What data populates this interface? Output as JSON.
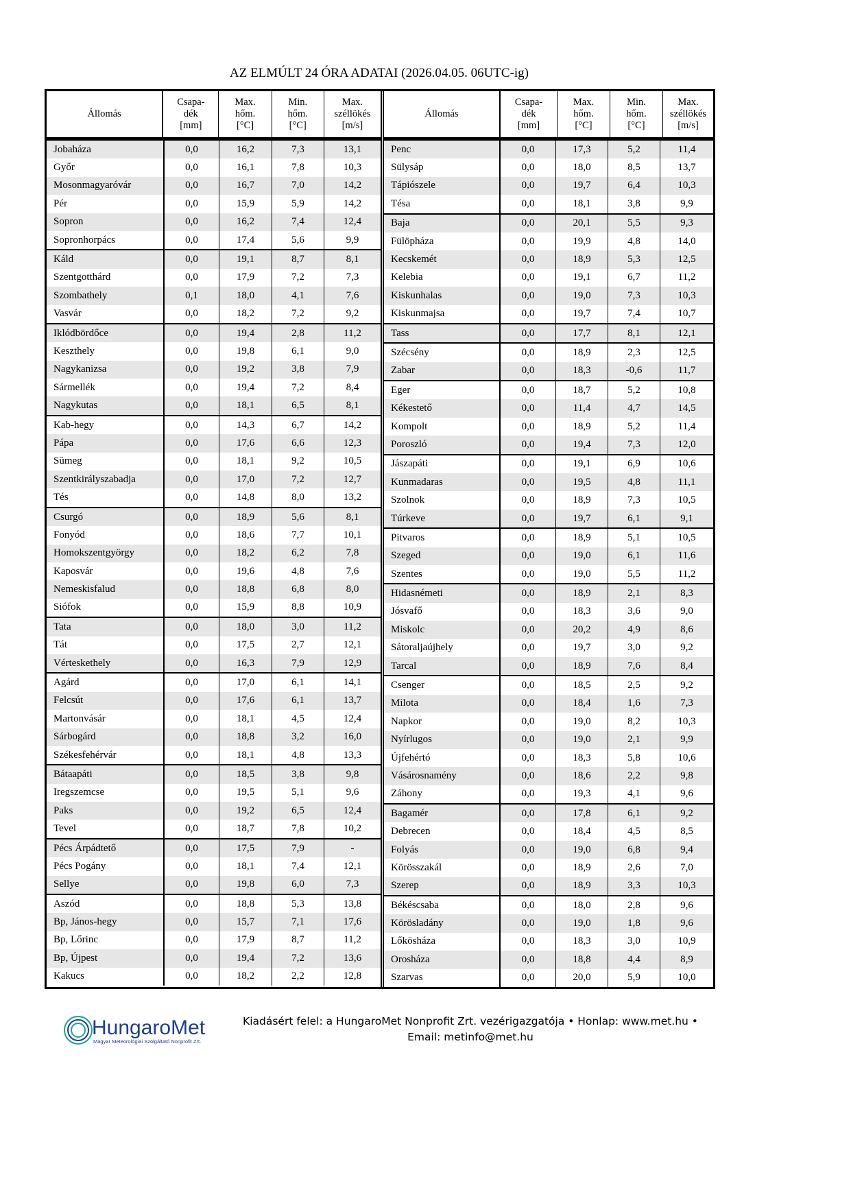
{
  "title": "AZ ELMÚLT 24 ÓRA ADATAI (2026.04.05. 06UTC-ig)",
  "columns": [
    "Állomás",
    "Csapa-\ndék\n[mm]",
    "Max.\nhőm.\n[°C]",
    "Min.\nhőm.\n[°C]",
    "Max.\nszéllökés\n[m/s]"
  ],
  "left_groups": [
    [
      [
        "Jobaháza",
        "0,0",
        "16,2",
        "7,3",
        "13,1"
      ],
      [
        "Győr",
        "0,0",
        "16,1",
        "7,8",
        "10,3"
      ],
      [
        "Mosonmagyaróvár",
        "0,0",
        "16,7",
        "7,0",
        "14,2"
      ],
      [
        "Pér",
        "0,0",
        "15,9",
        "5,9",
        "14,2"
      ],
      [
        "Sopron",
        "0,0",
        "16,2",
        "7,4",
        "12,4"
      ],
      [
        "Sopronhorpács",
        "0,0",
        "17,4",
        "5,6",
        "9,9"
      ]
    ],
    [
      [
        "Káld",
        "0,0",
        "19,1",
        "8,7",
        "8,1"
      ],
      [
        "Szentgotthárd",
        "0,0",
        "17,9",
        "7,2",
        "7,3"
      ],
      [
        "Szombathely",
        "0,1",
        "18,0",
        "4,1",
        "7,6"
      ],
      [
        "Vasvár",
        "0,0",
        "18,2",
        "7,2",
        "9,2"
      ]
    ],
    [
      [
        "Iklódbördőce",
        "0,0",
        "19,4",
        "2,8",
        "11,2"
      ],
      [
        "Keszthely",
        "0,0",
        "19,8",
        "6,1",
        "9,0"
      ],
      [
        "Nagykanizsa",
        "0,0",
        "19,2",
        "3,8",
        "7,9"
      ],
      [
        "Sármellék",
        "0,0",
        "19,4",
        "7,2",
        "8,4"
      ],
      [
        "Nagykutas",
        "0,0",
        "18,1",
        "6,5",
        "8,1"
      ]
    ],
    [
      [
        "Kab-hegy",
        "0,0",
        "14,3",
        "6,7",
        "14,2"
      ],
      [
        "Pápa",
        "0,0",
        "17,6",
        "6,6",
        "12,3"
      ],
      [
        "Sümeg",
        "0,0",
        "18,1",
        "9,2",
        "10,5"
      ],
      [
        "Szentkirályszabadja",
        "0,0",
        "17,0",
        "7,2",
        "12,7"
      ],
      [
        "Tés",
        "0,0",
        "14,8",
        "8,0",
        "13,2"
      ]
    ],
    [
      [
        "Csurgó",
        "0,0",
        "18,9",
        "5,6",
        "8,1"
      ],
      [
        "Fonyód",
        "0,0",
        "18,6",
        "7,7",
        "10,1"
      ],
      [
        "Homokszentgyörgy",
        "0,0",
        "18,2",
        "6,2",
        "7,8"
      ],
      [
        "Kaposvár",
        "0,0",
        "19,6",
        "4,8",
        "7,6"
      ],
      [
        "Nemeskisfalud",
        "0,0",
        "18,8",
        "6,8",
        "8,0"
      ],
      [
        "Siófok",
        "0,0",
        "15,9",
        "8,8",
        "10,9"
      ]
    ],
    [
      [
        "Tata",
        "0,0",
        "18,0",
        "3,0",
        "11,2"
      ],
      [
        "Tát",
        "0,0",
        "17,5",
        "2,7",
        "12,1"
      ],
      [
        "Vérteskethely",
        "0,0",
        "16,3",
        "7,9",
        "12,9"
      ]
    ],
    [
      [
        "Agárd",
        "0,0",
        "17,0",
        "6,1",
        "14,1"
      ],
      [
        "Felcsút",
        "0,0",
        "17,6",
        "6,1",
        "13,7"
      ],
      [
        "Martonvásár",
        "0,0",
        "18,1",
        "4,5",
        "12,4"
      ],
      [
        "Sárbogárd",
        "0,0",
        "18,8",
        "3,2",
        "16,0"
      ],
      [
        "Székesfehérvár",
        "0,0",
        "18,1",
        "4,8",
        "13,3"
      ]
    ],
    [
      [
        "Bátaapáti",
        "0,0",
        "18,5",
        "3,8",
        "9,8"
      ],
      [
        "Iregszemcse",
        "0,0",
        "19,5",
        "5,1",
        "9,6"
      ],
      [
        "Paks",
        "0,0",
        "19,2",
        "6,5",
        "12,4"
      ],
      [
        "Tevel",
        "0,0",
        "18,7",
        "7,8",
        "10,2"
      ]
    ],
    [
      [
        "Pécs Árpádtető",
        "0,0",
        "17,5",
        "7,9",
        "-"
      ],
      [
        "Pécs Pogány",
        "0,0",
        "18,1",
        "7,4",
        "12,1"
      ],
      [
        "Sellye",
        "0,0",
        "19,8",
        "6,0",
        "7,3"
      ]
    ],
    [
      [
        "Aszód",
        "0,0",
        "18,8",
        "5,3",
        "13,8"
      ],
      [
        "Bp, János-hegy",
        "0,0",
        "15,7",
        "7,1",
        "17,6"
      ],
      [
        "Bp, Lőrinc",
        "0,0",
        "17,9",
        "8,7",
        "11,2"
      ],
      [
        "Bp, Újpest",
        "0,0",
        "19,4",
        "7,2",
        "13,6"
      ],
      [
        "Kakucs",
        "0,0",
        "18,2",
        "2,2",
        "12,8"
      ]
    ]
  ],
  "right_groups": [
    [
      [
        "Penc",
        "0,0",
        "17,3",
        "5,2",
        "11,4"
      ],
      [
        "Sülysáp",
        "0,0",
        "18,0",
        "8,5",
        "13,7"
      ],
      [
        "Tápiószele",
        "0,0",
        "19,7",
        "6,4",
        "10,3"
      ],
      [
        "Tésa",
        "0,0",
        "18,1",
        "3,8",
        "9,9"
      ]
    ],
    [
      [
        "Baja",
        "0,0",
        "20,1",
        "5,5",
        "9,3"
      ],
      [
        "Fülöpháza",
        "0,0",
        "19,9",
        "4,8",
        "14,0"
      ],
      [
        "Kecskemét",
        "0,0",
        "18,9",
        "5,3",
        "12,5"
      ],
      [
        "Kelebia",
        "0,0",
        "19,1",
        "6,7",
        "11,2"
      ],
      [
        "Kiskunhalas",
        "0,0",
        "19,0",
        "7,3",
        "10,3"
      ],
      [
        "Kiskunmajsa",
        "0,0",
        "19,7",
        "7,4",
        "10,7"
      ]
    ],
    [
      [
        "Tass",
        "0,0",
        "17,7",
        "8,1",
        "12,1"
      ]
    ],
    [
      [
        "Szécsény",
        "0,0",
        "18,9",
        "2,3",
        "12,5"
      ],
      [
        "Zabar",
        "0,0",
        "18,3",
        "-0,6",
        "11,7"
      ]
    ],
    [
      [
        "Eger",
        "0,0",
        "18,7",
        "5,2",
        "10,8"
      ],
      [
        "Kékestető",
        "0,0",
        "11,4",
        "4,7",
        "14,5"
      ],
      [
        "Kompolt",
        "0,0",
        "18,9",
        "5,2",
        "11,4"
      ],
      [
        "Poroszló",
        "0,0",
        "19,4",
        "7,3",
        "12,0"
      ]
    ],
    [
      [
        "Jászapáti",
        "0,0",
        "19,1",
        "6,9",
        "10,6"
      ],
      [
        "Kunmadaras",
        "0,0",
        "19,5",
        "4,8",
        "11,1"
      ],
      [
        "Szolnok",
        "0,0",
        "18,9",
        "7,3",
        "10,5"
      ],
      [
        "Túrkeve",
        "0,0",
        "19,7",
        "6,1",
        "9,1"
      ]
    ],
    [
      [
        "Pitvaros",
        "0,0",
        "18,9",
        "5,1",
        "10,5"
      ],
      [
        "Szeged",
        "0,0",
        "19,0",
        "6,1",
        "11,6"
      ],
      [
        "Szentes",
        "0,0",
        "19,0",
        "5,5",
        "11,2"
      ]
    ],
    [
      [
        "Hidasnémeti",
        "0,0",
        "18,9",
        "2,1",
        "8,3"
      ],
      [
        "Jósvafő",
        "0,0",
        "18,3",
        "3,6",
        "9,0"
      ],
      [
        "Miskolc",
        "0,0",
        "20,2",
        "4,9",
        "8,6"
      ],
      [
        "Sátoraljaújhely",
        "0,0",
        "19,7",
        "3,0",
        "9,2"
      ],
      [
        "Tarcal",
        "0,0",
        "18,9",
        "7,6",
        "8,4"
      ]
    ],
    [
      [
        "Csenger",
        "0,0",
        "18,5",
        "2,5",
        "9,2"
      ],
      [
        "Milota",
        "0,0",
        "18,4",
        "1,6",
        "7,3"
      ],
      [
        "Napkor",
        "0,0",
        "19,0",
        "8,2",
        "10,3"
      ],
      [
        "Nyírlugos",
        "0,0",
        "19,0",
        "2,1",
        "9,9"
      ],
      [
        "Újfehértó",
        "0,0",
        "18,3",
        "5,8",
        "10,6"
      ],
      [
        "Vásárosnamény",
        "0,0",
        "18,6",
        "2,2",
        "9,8"
      ],
      [
        "Záhony",
        "0,0",
        "19,3",
        "4,1",
        "9,6"
      ]
    ],
    [
      [
        "Bagamér",
        "0,0",
        "17,8",
        "6,1",
        "9,2"
      ],
      [
        "Debrecen",
        "0,0",
        "18,4",
        "4,5",
        "8,5"
      ],
      [
        "Folyás",
        "0,0",
        "19,0",
        "6,8",
        "9,4"
      ],
      [
        "Körösszakál",
        "0,0",
        "18,9",
        "2,6",
        "7,0"
      ],
      [
        "Szerep",
        "0,0",
        "18,9",
        "3,3",
        "10,3"
      ]
    ],
    [
      [
        "Békéscsaba",
        "0,0",
        "18,0",
        "2,8",
        "9,6"
      ],
      [
        "Körösladány",
        "0,0",
        "19,0",
        "1,8",
        "9,6"
      ],
      [
        "Lőkösháza",
        "0,0",
        "18,3",
        "3,0",
        "10,9"
      ],
      [
        "Orosháza",
        "0,0",
        "18,8",
        "4,4",
        "8,9"
      ],
      [
        "Szarvas",
        "0,0",
        "20,0",
        "5,9",
        "10,0"
      ]
    ]
  ],
  "footer": {
    "logo_text": "HungaroMet",
    "logo_subtext": "Magyar Meteorológiai Szolgáltató Nonprofit Zrt.",
    "line1": "Kiadásért felel: a HungaroMet Nonprofit Zrt. vezérigazgatója • Honlap: www.met.hu •",
    "line2": "Email: metinfo@met.hu"
  },
  "colors": {
    "row_shade": "#e6e6e6",
    "logo_blue": "#1d3f8f",
    "logo_teal": "#1aa39a"
  }
}
